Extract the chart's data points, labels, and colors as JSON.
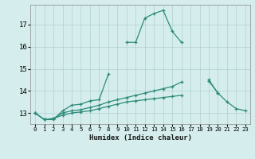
{
  "xlabel": "Humidex (Indice chaleur)",
  "x_values": [
    0,
    1,
    2,
    3,
    4,
    5,
    6,
    7,
    8,
    9,
    10,
    11,
    12,
    13,
    14,
    15,
    16,
    17,
    18,
    19,
    20,
    21,
    22,
    23
  ],
  "line1": [
    13.0,
    12.7,
    12.7,
    13.1,
    13.35,
    13.4,
    13.55,
    13.6,
    14.75,
    null,
    16.2,
    16.2,
    17.3,
    17.5,
    17.65,
    16.7,
    16.2,
    null,
    null,
    14.45,
    13.9,
    13.5,
    13.2,
    13.1
  ],
  "line2": [
    13.0,
    12.7,
    12.75,
    13.0,
    13.1,
    13.15,
    13.25,
    13.35,
    13.5,
    13.6,
    13.7,
    13.8,
    13.9,
    14.0,
    14.1,
    14.2,
    14.4,
    null,
    null,
    14.5,
    13.9,
    null,
    null,
    null
  ],
  "line3": [
    13.0,
    12.7,
    12.75,
    12.9,
    13.0,
    13.05,
    13.1,
    13.2,
    13.3,
    13.4,
    13.5,
    13.55,
    13.6,
    13.65,
    13.7,
    13.75,
    13.8,
    null,
    null,
    null,
    null,
    null,
    null,
    null
  ],
  "line_color": "#2d8b78",
  "bg_color": "#d5eeed",
  "grid_color": "#b0cfcf",
  "ylim": [
    12.5,
    17.9
  ],
  "yticks": [
    13,
    14,
    15,
    16,
    17
  ],
  "xticks": [
    0,
    1,
    2,
    3,
    4,
    5,
    6,
    7,
    8,
    9,
    10,
    11,
    12,
    13,
    14,
    15,
    16,
    17,
    18,
    19,
    20,
    21,
    22,
    23
  ]
}
